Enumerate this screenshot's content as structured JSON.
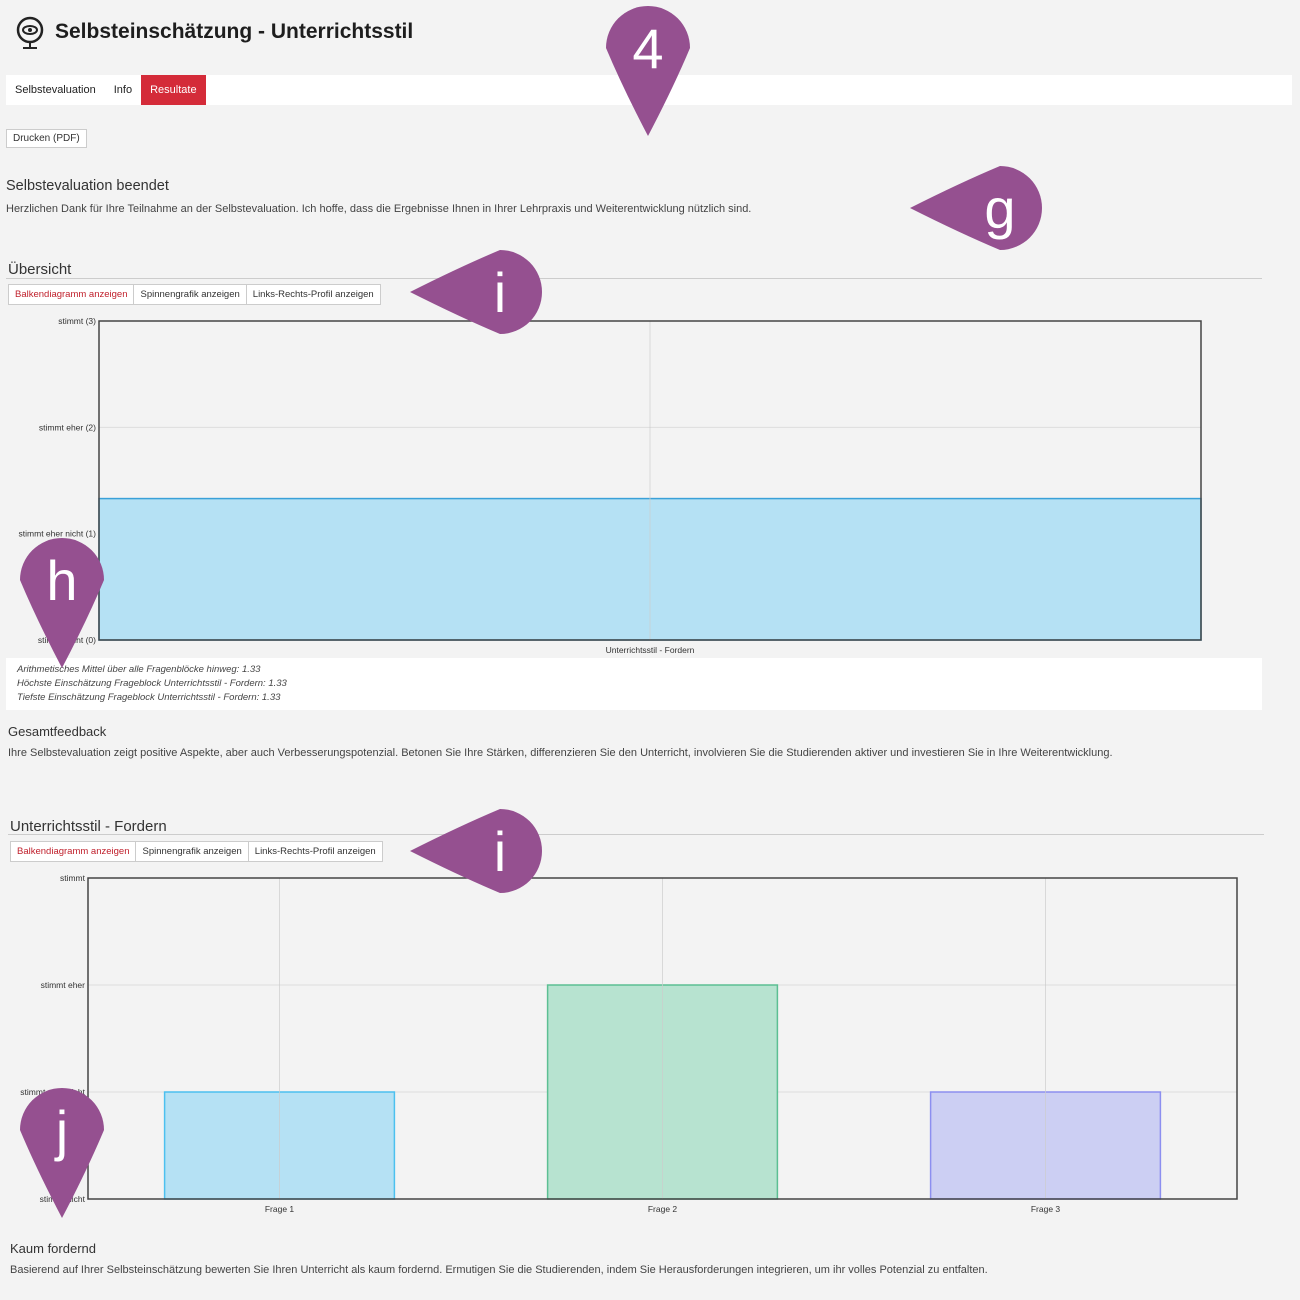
{
  "header": {
    "title": "Selbsteinschätzung - Unterrichtsstil",
    "icon": "eye-mirror-icon"
  },
  "tabs": [
    {
      "label": "Selbstevaluation"
    },
    {
      "label": "Info"
    },
    {
      "label": "Resultate",
      "active": true
    }
  ],
  "print_button": "Drucken (PDF)",
  "completion": {
    "title": "Selbstevaluation beendet",
    "text": "Herzlichen Dank für Ihre Teilnahme an der Selbstevaluation. Ich hoffe, dass die Ergebnisse Ihnen in Ihrer Lehrpraxis und Weiterentwicklung nützlich sind."
  },
  "overview": {
    "title": "Übersicht",
    "buttons": [
      "Balkendiagramm anzeigen",
      "Spinnengrafik anzeigen",
      "Links-Rechts-Profil anzeigen"
    ],
    "stats": [
      "Arithmetisches Mittel über alle Fragenblöcke hinweg: 1.33",
      "Höchste Einschätzung Frageblock Unterrichtsstil - Fordern: 1.33",
      "Tiefste Einschätzung Frageblock Unterrichtsstil - Fordern: 1.33"
    ]
  },
  "feedback": {
    "title": "Gesamtfeedback",
    "text": "Ihre Selbstevaluation zeigt positive Aspekte, aber auch Verbesserungspotenzial. Betonen Sie Ihre Stärken, differenzieren Sie den Unterricht, involvieren Sie die Studierenden aktiver und investieren Sie in Ihre Weiterentwicklung."
  },
  "block": {
    "title": "Unterrichtsstil - Fordern",
    "buttons": [
      "Balkendiagramm anzeigen",
      "Spinnengrafik anzeigen",
      "Links-Rechts-Profil anzeigen"
    ],
    "result_title": "Kaum fordernd",
    "result_text": "Basierend auf Ihrer Selbsteinschätzung bewerten Sie Ihren Unterricht als kaum fordernd. Ermutigen Sie die Studierenden, indem Sie Herausforderungen integrieren, um ihr volles Potenzial zu entfalten."
  },
  "annotations": [
    "4",
    "g",
    "i",
    "h",
    "i",
    "j"
  ],
  "chart_data": [
    {
      "type": "bar",
      "categories": [
        "Unterrichtsstil - Fordern"
      ],
      "values": [
        1.33
      ],
      "ylim": [
        0,
        3
      ],
      "yticks": [
        {
          "v": 3,
          "label": "stimmt (3)"
        },
        {
          "v": 2,
          "label": "stimmt eher (2)"
        },
        {
          "v": 1,
          "label": "stimmt eher nicht (1)"
        },
        {
          "v": 0,
          "label": "stimmt nicht (0)"
        }
      ],
      "colors": [
        "#b5e1f4"
      ],
      "borders": [
        "#3aa0d8"
      ],
      "grid": true
    },
    {
      "type": "bar",
      "categories": [
        "Frage 1",
        "Frage 2",
        "Frage 3"
      ],
      "values": [
        1,
        2,
        1
      ],
      "ylim": [
        0,
        3
      ],
      "yticks": [
        {
          "v": 3,
          "label": "stimmt"
        },
        {
          "v": 2,
          "label": "stimmt eher"
        },
        {
          "v": 1,
          "label": "stimmt eher nicht"
        },
        {
          "v": 0,
          "label": "stimmt nicht"
        }
      ],
      "colors": [
        "#b5e1f4",
        "#b7e3d0",
        "#cccff3"
      ],
      "borders": [
        "#4cc0ef",
        "#5cbf93",
        "#8c8ff0"
      ],
      "grid": true
    }
  ]
}
